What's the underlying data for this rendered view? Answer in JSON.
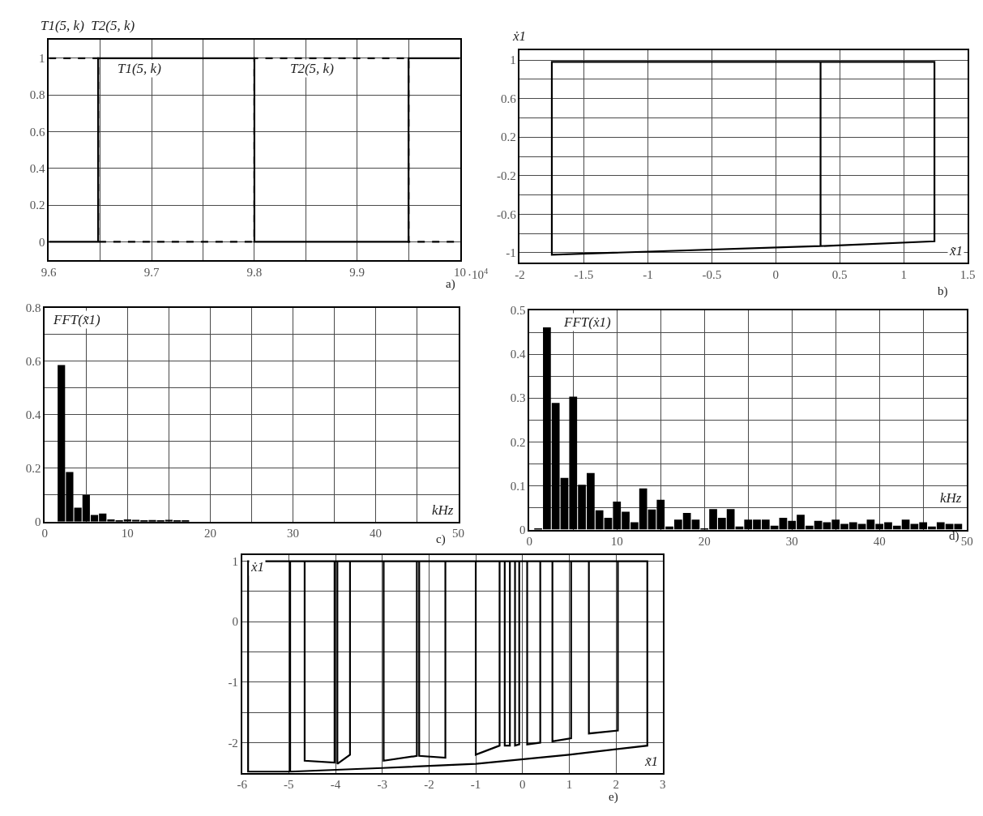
{
  "chart_data": [
    {
      "type": "step",
      "ylabel": "T1(5, k)  T2(5, k)",
      "xlabel": "·10$^{4}$",
      "grid": true,
      "annotations": [
        "T1(5, k)",
        "T2(5, k)",
        "a)"
      ],
      "series": [
        {
          "color": "#000000",
          "line_style": "solid",
          "x": [
            9.6,
            9.648,
            9.8,
            9.95,
            10
          ],
          "values": [
            0,
            1,
            0,
            1,
            1
          ]
        },
        {
          "color": "#000000",
          "line_style": "dashed",
          "x": [
            9.6,
            9.648,
            9.8,
            9.95,
            10
          ],
          "values": [
            1,
            0,
            1,
            0,
            0
          ]
        }
      ],
      "xlim": [
        9.6,
        10
      ],
      "ylim": [
        -0.1,
        1.1
      ],
      "xticks": [
        9.6,
        {
          "value": 9.65,
          "label": null
        },
        9.7,
        {
          "value": 9.75,
          "label": null
        },
        9.8,
        {
          "value": 9.85,
          "label": null
        },
        9.9,
        {
          "value": 9.95,
          "label": null
        },
        10
      ],
      "yticks": [
        0,
        0.2,
        0.4,
        0.6,
        0.8,
        1
      ]
    },
    {
      "type": "line",
      "ylabel": "ẋ1",
      "xlabel": "x̃1",
      "grid": true,
      "annotations": [
        "b)"
      ],
      "series": [
        {
          "color": "#000000",
          "x": [
            0.35,
            0.35,
            1.24,
            1.24,
            -1.75,
            -1.75,
            0.35
          ],
          "values": [
            0.98,
            -0.93,
            -0.88,
            0.98,
            0.98,
            -1.02,
            -0.93
          ]
        }
      ],
      "xlim": [
        -2,
        1.5
      ],
      "ylim": [
        -1.1,
        1.1
      ],
      "xticks": [
        -2,
        -1.5,
        -1,
        -0.5,
        0,
        0.5,
        1,
        1.5
      ],
      "yticks": [
        {
          "value": -1,
          "label": "-1"
        },
        {
          "value": -0.8,
          "label": null
        },
        -0.6,
        {
          "value": -0.4,
          "label": null
        },
        -0.2,
        {
          "value": 0,
          "label": null
        },
        0.2,
        {
          "value": 0.4,
          "label": null
        },
        0.6,
        {
          "value": 0.8,
          "label": null
        },
        1
      ]
    },
    {
      "type": "bar",
      "ylabel": "FFT(x̃1)",
      "xlabel": "kHz",
      "grid": true,
      "annotations": [
        "c)"
      ],
      "series": [
        {
          "color": "#000000",
          "x": [
            2,
            3,
            4,
            5,
            6,
            7,
            8,
            9,
            10,
            11,
            12,
            13,
            14,
            15,
            16,
            17
          ],
          "values": [
            0.586,
            0.186,
            0.052,
            0.1,
            0.025,
            0.03,
            0.008,
            0.005,
            0.008,
            0.007,
            0.004,
            0.006,
            0.004,
            0.007,
            0.004,
            0.004
          ]
        }
      ],
      "xlim": [
        0,
        50
      ],
      "ylim": [
        0,
        0.8
      ],
      "xticks": [
        0,
        {
          "value": 5,
          "label": null
        },
        10,
        {
          "value": 15,
          "label": null
        },
        20,
        {
          "value": 25,
          "label": null
        },
        30,
        {
          "value": 35,
          "label": null
        },
        40,
        {
          "value": 45,
          "label": null
        },
        50
      ],
      "yticks": [
        0,
        {
          "value": 0.1,
          "label": null
        },
        0.2,
        {
          "value": 0.3,
          "label": null
        },
        0.4,
        {
          "value": 0.5,
          "label": null
        },
        0.6,
        {
          "value": 0.7,
          "label": null
        },
        0.8
      ]
    },
    {
      "type": "bar",
      "ylabel": "FFT(ẋ1)",
      "xlabel": "kHz",
      "grid": true,
      "annotations": [
        "d)"
      ],
      "series": [
        {
          "color": "#000000",
          "x": [
            1,
            2,
            3,
            4,
            5,
            6,
            7,
            8,
            9,
            10,
            11,
            12,
            13,
            14,
            15,
            16,
            17,
            18,
            19,
            20,
            21,
            22,
            23,
            24,
            25,
            26,
            27,
            28,
            29,
            30,
            31,
            32,
            33,
            34,
            35,
            36,
            37,
            38,
            39,
            40,
            41,
            42,
            43,
            44,
            45,
            46,
            47,
            48,
            49
          ],
          "values": [
            0.002,
            0.461,
            0.289,
            0.118,
            0.303,
            0.102,
            0.129,
            0.044,
            0.027,
            0.064,
            0.041,
            0.017,
            0.094,
            0.046,
            0.068,
            0.007,
            0.023,
            0.038,
            0.023,
            0.002,
            0.047,
            0.027,
            0.047,
            0.007,
            0.023,
            0.023,
            0.023,
            0.009,
            0.027,
            0.02,
            0.034,
            0.009,
            0.02,
            0.017,
            0.023,
            0.013,
            0.017,
            0.013,
            0.023,
            0.013,
            0.017,
            0.009,
            0.023,
            0.013,
            0.017,
            0.007,
            0.017,
            0.013,
            0.013
          ]
        }
      ],
      "xlim": [
        0,
        50
      ],
      "ylim": [
        0,
        0.5
      ],
      "xticks": [
        0,
        {
          "value": 5,
          "label": null
        },
        10,
        {
          "value": 15,
          "label": null
        },
        20,
        {
          "value": 25,
          "label": null
        },
        30,
        {
          "value": 35,
          "label": null
        },
        40,
        {
          "value": 45,
          "label": null
        },
        50
      ],
      "yticks": [
        0,
        {
          "value": 0.05,
          "label": null
        },
        0.1,
        {
          "value": 0.15,
          "label": null
        },
        0.2,
        {
          "value": 0.25,
          "label": null
        },
        0.3,
        {
          "value": 0.35,
          "label": null
        },
        0.4,
        {
          "value": 0.45,
          "label": null
        },
        0.5
      ]
    },
    {
      "type": "line",
      "ylabel": "ẋ1",
      "xlabel": "x̃1",
      "grid": true,
      "annotations": [
        "e)"
      ],
      "series": [
        {
          "color": "#000000",
          "x": [
            2.67,
            2.67,
            2.04,
            2.04,
            1.42,
            1.42,
            1.04,
            1.04,
            0.64,
            0.64,
            0.38,
            0.38,
            0.1,
            0.1,
            -0.07,
            -0.07,
            -0.16,
            -0.16,
            -0.27,
            -0.27,
            -0.38,
            -0.38,
            -0.49,
            -0.49,
            -1.0,
            -1.0,
            -1.65,
            -1.65,
            -2.21,
            -2.21,
            -2.26,
            -2.26,
            -2.97,
            -2.97,
            -3.69,
            -3.69,
            -3.96,
            -3.96,
            -4.02,
            -4.02,
            -4.66,
            -4.66,
            -4.97,
            -4.97,
            -5.87,
            -5.87,
            2.67,
            2.67,
            1.0,
            -1.0,
            -3.0,
            -4.97
          ],
          "values": [
            -1.72,
            1,
            1,
            -1.8,
            -1.85,
            1,
            1,
            -1.93,
            -1.98,
            1,
            1,
            -2.0,
            -2.03,
            1,
            1,
            -2.03,
            -2.05,
            1,
            1,
            -2.05,
            -2.05,
            1,
            1,
            -2.05,
            -2.2,
            1,
            1,
            -2.25,
            -2.22,
            1,
            1,
            -2.22,
            -2.3,
            1,
            1,
            -2.2,
            -2.35,
            1,
            1,
            -2.33,
            -2.3,
            1,
            1,
            -2.48,
            -2.48,
            1,
            1,
            -2.05,
            -2.2,
            -2.35,
            -2.42,
            -2.48
          ]
        }
      ],
      "xlim": [
        -6,
        3
      ],
      "ylim": [
        -2.5,
        1.1
      ],
      "xticks": [
        -6,
        -5,
        -4,
        -3,
        -2,
        -1,
        0,
        1,
        2,
        3
      ],
      "yticks": [
        -2,
        {
          "value": -1.5,
          "label": null
        },
        -1,
        {
          "value": -0.5,
          "label": null
        },
        0,
        {
          "value": 0.5,
          "label": null
        },
        1
      ]
    }
  ]
}
